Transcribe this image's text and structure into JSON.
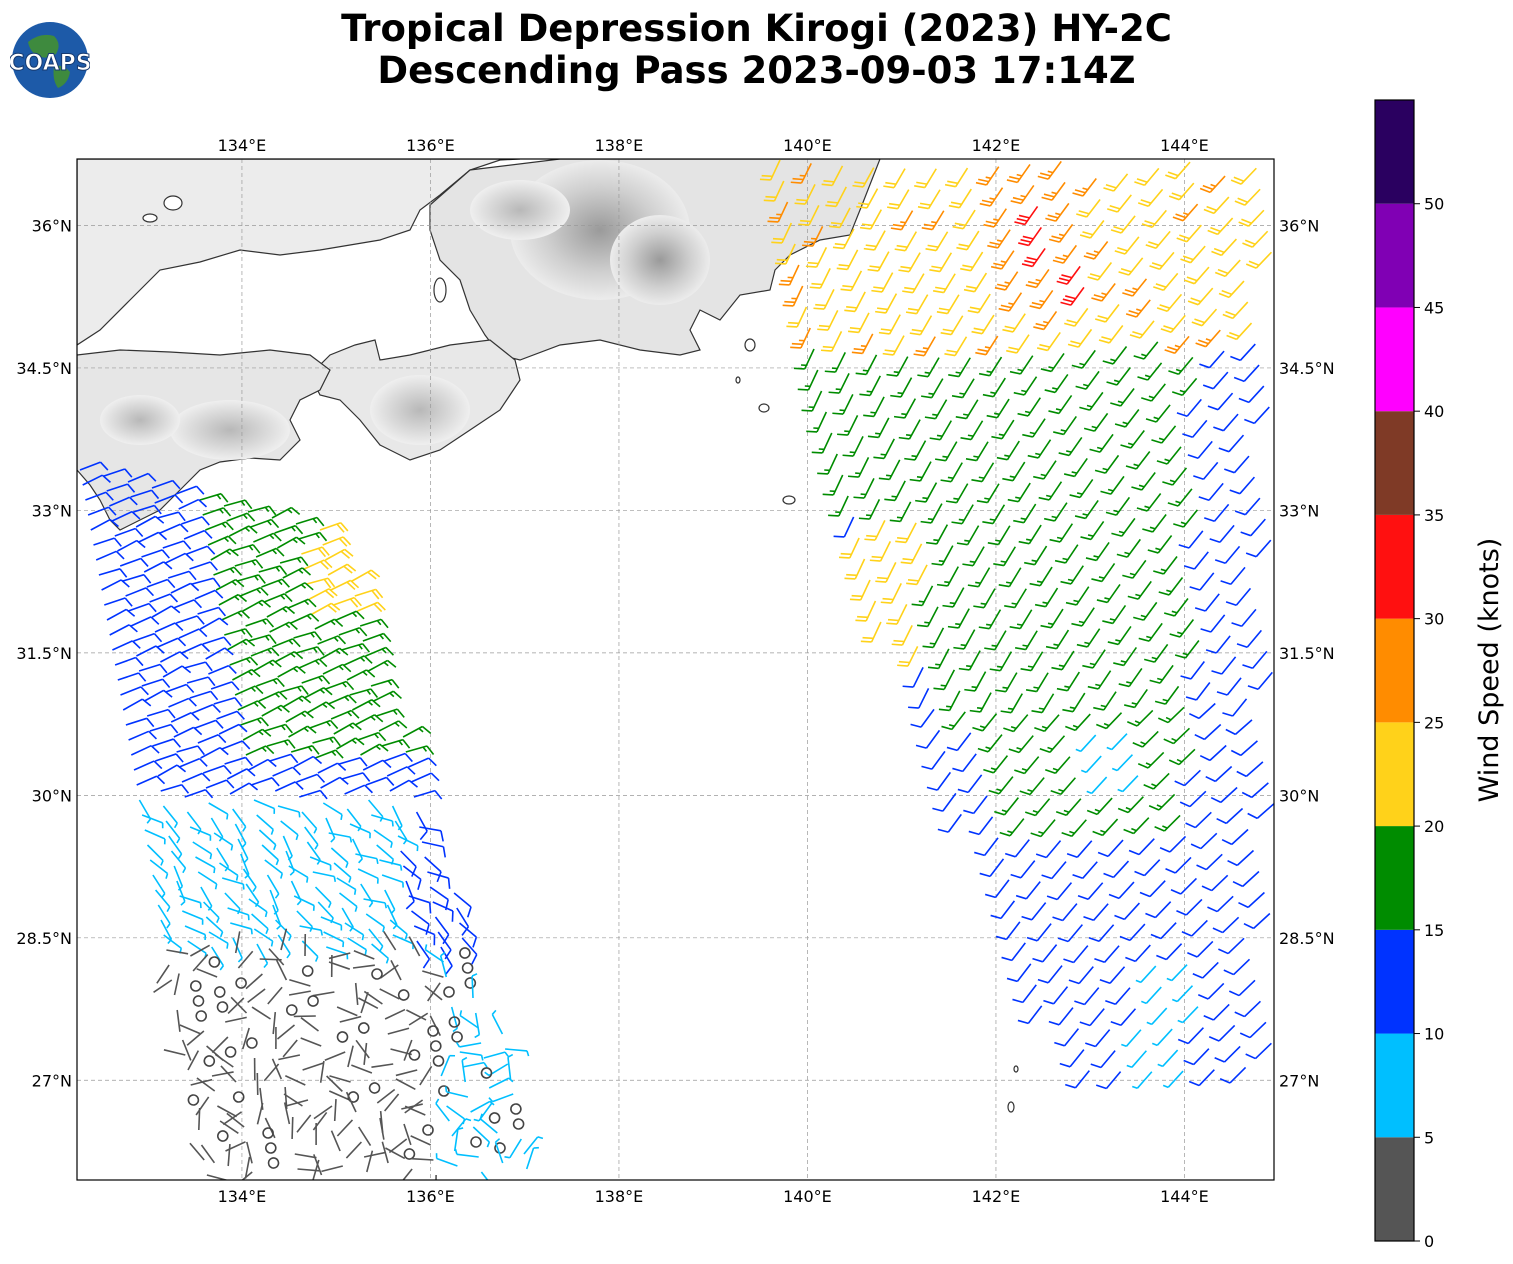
{
  "title_line1": "Tropical Depression Kirogi (2023) HY-2C",
  "title_line2": "Descending Pass 2023-09-03 17:14Z",
  "logo_text": "COAPS",
  "map": {
    "lon_labels": [
      "134°E",
      "136°E",
      "138°E",
      "140°E",
      "142°E",
      "144°E"
    ],
    "lat_labels": [
      "36°N",
      "34.5°N",
      "33°N",
      "31.5°N",
      "30°N",
      "28.5°N",
      "27°N"
    ],
    "lon_range": [
      132.25,
      144.95
    ],
    "lat_range": [
      25.95,
      36.7
    ]
  },
  "colorbar": {
    "label": "Wind Speed (knots)",
    "tick_labels": [
      "0",
      "5",
      "10",
      "15",
      "20",
      "25",
      "30",
      "35",
      "40",
      "45",
      "50"
    ],
    "bins": [
      {
        "range": [
          0,
          5
        ],
        "color": "#555555"
      },
      {
        "range": [
          5,
          10
        ],
        "color": "#00bfff"
      },
      {
        "range": [
          10,
          15
        ],
        "color": "#0033ff"
      },
      {
        "range": [
          15,
          20
        ],
        "color": "#008c00"
      },
      {
        "range": [
          20,
          25
        ],
        "color": "#ffd21a"
      },
      {
        "range": [
          25,
          30
        ],
        "color": "#ff8c00"
      },
      {
        "range": [
          30,
          35
        ],
        "color": "#ff1010"
      },
      {
        "range": [
          35,
          40
        ],
        "color": "#7f3a26"
      },
      {
        "range": [
          40,
          45
        ],
        "color": "#ff00ff"
      },
      {
        "range": [
          45,
          50
        ],
        "color": "#8000b4"
      },
      {
        "range": [
          50,
          55
        ],
        "color": "#2a0060"
      }
    ]
  }
}
